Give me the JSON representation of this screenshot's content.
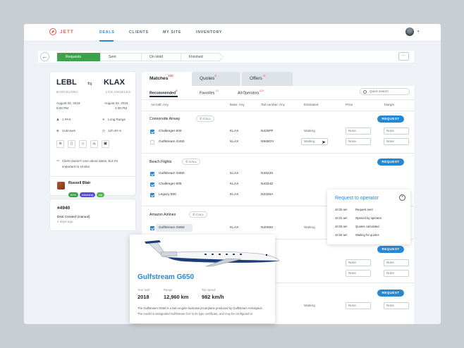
{
  "app": {
    "brand": "JETT",
    "nav": [
      "DEALS",
      "CLIENTS",
      "MY SITE",
      "INVENTORY"
    ]
  },
  "steps": [
    "Requests",
    "Sent",
    "On Hold",
    "Finished"
  ],
  "more": "···",
  "trip": {
    "from": "LEBL",
    "to": "KLAX",
    "from_city": "BARCELONA",
    "to_city": "LOS ANGELES",
    "dep_date": "August 03, 2018",
    "dep_time": "9:00 PM",
    "arr_date": "August 03, 2018",
    "arr_time": "2:00 PM",
    "pax": "1 PAX",
    "range": "Long Range",
    "category": "Unknown",
    "duration": "12h 40 m",
    "note": "Client doesn't care about dates, but It's important to smoke"
  },
  "client": {
    "name": "Russell Blair",
    "tags": [
      "82%",
      "returning",
      "vip"
    ],
    "tag_colors": [
      "#3aa34c",
      "#5b4ed6",
      "#53b84e"
    ]
  },
  "deal": {
    "id": "#4940",
    "desc": "Deal Created (manual)",
    "when": "2 days ago"
  },
  "tabs": [
    {
      "label": "Matches",
      "count": "100"
    },
    {
      "label": "Quotes",
      "count": "3"
    },
    {
      "label": "Offers",
      "count": "+1"
    }
  ],
  "subtabs": [
    {
      "label": "Recommended",
      "count": "8"
    },
    {
      "label": "Favorites",
      "count": "12"
    },
    {
      "label": "All Operators",
      "count": "120"
    }
  ],
  "search": {
    "placeholder": "Quick search"
  },
  "columns": [
    "Aircraft: Any",
    "Base: Any",
    "Tail number: Any",
    "Estimated",
    "Price",
    "Margin"
  ],
  "call": "CALL",
  "request": "REQUEST",
  "none": "None",
  "waiting": "Waiting",
  "groups": [
    {
      "name": "Connorside Airway",
      "rows": [
        {
          "ac": "Challenger 600",
          "base": "KLAX",
          "tail": "N426PF",
          "checked": true
        },
        {
          "ac": "Gulfstream G450",
          "base": "KLAX",
          "tail": "N948OV",
          "checked": false
        }
      ]
    },
    {
      "name": "Beach Flights",
      "rows": [
        {
          "ac": "Gulfstream G650",
          "base": "KLAX",
          "tail": "N3423X",
          "checked": true
        },
        {
          "ac": "Challenger 605",
          "base": "KLAX",
          "tail": "N4334Z",
          "checked": true
        },
        {
          "ac": "Legacy 500",
          "base": "KLAX",
          "tail": "N2345A",
          "checked": true
        }
      ]
    },
    {
      "name": "Amazon Airlines",
      "rows": [
        {
          "ac": "Gulfstream G650",
          "base": "KLAX",
          "tail": "N2009X",
          "checked": true
        }
      ]
    }
  ],
  "popover": {
    "title": "Request to operator",
    "items": [
      {
        "t": "10:20 am",
        "e": "Request sent"
      },
      {
        "t": "10:31 am",
        "e": "Opened by operator"
      },
      {
        "t": "10:33 am",
        "e": "Quotes calculated"
      },
      {
        "t": "10:34 am",
        "e": "Waiting for quotes"
      }
    ]
  },
  "aircraft": {
    "name": "Gulfstream G650",
    "specs": [
      {
        "k": "Year built",
        "v": "2018"
      },
      {
        "k": "Range",
        "v": "12,960 km"
      },
      {
        "k": "Top speed",
        "v": "982 km/h"
      }
    ],
    "desc": "The Gulfstream G650 is a twin-engine business jet airplane produced by Gulfstream Aerospace. The model is designated Gulfstream GVI in its type certificate, and may be configured to"
  },
  "lower": {
    "letter": "A",
    "tail": "N2009X"
  },
  "colors": {
    "accent": "#2688d5",
    "brand": "#e4584d",
    "success": "#3aa34c"
  }
}
